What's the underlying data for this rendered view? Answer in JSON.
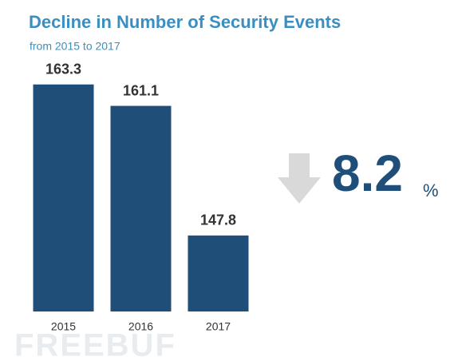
{
  "chart_data": {
    "type": "bar",
    "title": "Decline in Number of Security Events",
    "subtitle": "from 2015 to 2017",
    "categories": [
      "2015",
      "2016",
      "2017"
    ],
    "values": [
      163.3,
      161.1,
      147.8
    ],
    "color": "#1f4e79",
    "ylim": [
      140,
      165
    ],
    "annotation": {
      "text": "8.2",
      "unit": "%"
    },
    "watermark": "FREEBUF"
  }
}
